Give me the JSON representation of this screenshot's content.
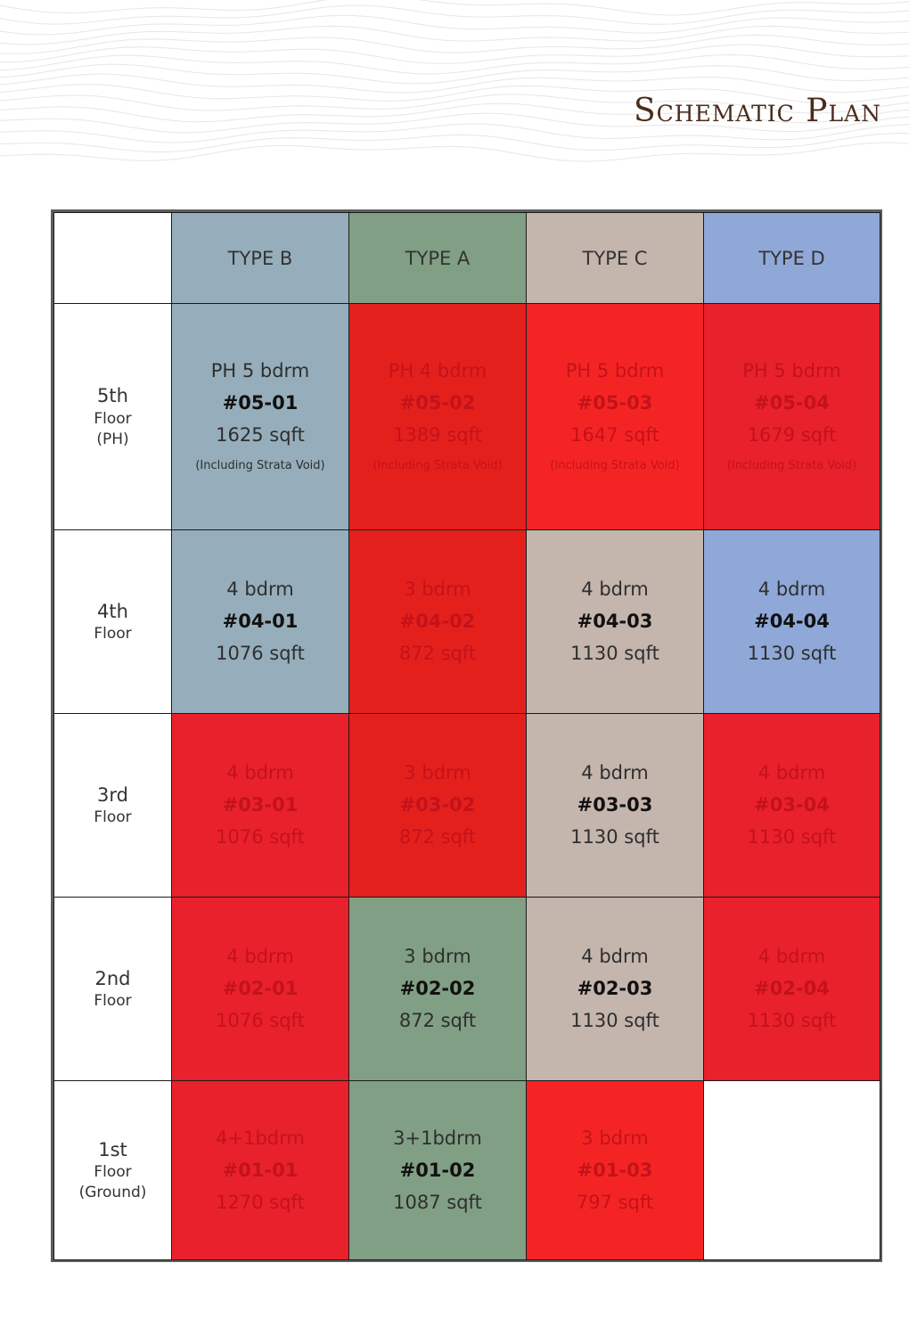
{
  "title": "Schematic Plan",
  "colors": {
    "type_b": "#96aebb",
    "type_a": "#819f84",
    "type_c": "#c4b5ad",
    "type_d": "#8fa8d8",
    "sold_1": "#e4201d",
    "sold_2": "#f52424",
    "sold_3": "#e8212c"
  },
  "columns": [
    {
      "label": "TYPE B",
      "color": "#96aebb"
    },
    {
      "label": "TYPE A",
      "color": "#819f84"
    },
    {
      "label": "TYPE C",
      "color": "#c4b5ad"
    },
    {
      "label": "TYPE D",
      "color": "#8fa8d8"
    }
  ],
  "floors": [
    {
      "label": [
        "5th",
        "Floor",
        "(PH)"
      ],
      "units": [
        {
          "bdrm": "PH 5 bdrm",
          "unit": "#05-01",
          "sqft": "1625 sqft",
          "note": "(Including Strata Void)",
          "color": "#96aebb",
          "sold": false
        },
        {
          "bdrm": "PH 4 bdrm",
          "unit": "#05-02",
          "sqft": "1389 sqft",
          "note": "(Including Strata Void)",
          "color": "#e4201d",
          "sold": true
        },
        {
          "bdrm": "PH 5 bdrm",
          "unit": "#05-03",
          "sqft": "1647 sqft",
          "note": "(Including Strata Void)",
          "color": "#f52424",
          "sold": true
        },
        {
          "bdrm": "PH 5 bdrm",
          "unit": "#05-04",
          "sqft": "1679 sqft",
          "note": "(Including Strata Void)",
          "color": "#e8212c",
          "sold": true
        }
      ]
    },
    {
      "label": [
        "4th",
        "Floor"
      ],
      "units": [
        {
          "bdrm": "4 bdrm",
          "unit": "#04-01",
          "sqft": "1076 sqft",
          "color": "#96aebb",
          "sold": false
        },
        {
          "bdrm": "3 bdrm",
          "unit": "#04-02",
          "sqft": "872 sqft",
          "color": "#e4201d",
          "sold": true
        },
        {
          "bdrm": "4 bdrm",
          "unit": "#04-03",
          "sqft": "1130 sqft",
          "color": "#c4b5ad",
          "sold": false
        },
        {
          "bdrm": "4 bdrm",
          "unit": "#04-04",
          "sqft": "1130 sqft",
          "color": "#8fa8d8",
          "sold": false
        }
      ]
    },
    {
      "label": [
        "3rd",
        "Floor"
      ],
      "units": [
        {
          "bdrm": "4 bdrm",
          "unit": "#03-01",
          "sqft": "1076 sqft",
          "color": "#e8212c",
          "sold": true
        },
        {
          "bdrm": "3 bdrm",
          "unit": "#03-02",
          "sqft": "872 sqft",
          "color": "#e4201d",
          "sold": true
        },
        {
          "bdrm": "4 bdrm",
          "unit": "#03-03",
          "sqft": "1130 sqft",
          "color": "#c4b5ad",
          "sold": false
        },
        {
          "bdrm": "4 bdrm",
          "unit": "#03-04",
          "sqft": "1130 sqft",
          "color": "#e8212c",
          "sold": true
        }
      ]
    },
    {
      "label": [
        "2nd",
        "Floor"
      ],
      "units": [
        {
          "bdrm": "4 bdrm",
          "unit": "#02-01",
          "sqft": "1076 sqft",
          "color": "#e8212c",
          "sold": true
        },
        {
          "bdrm": "3 bdrm",
          "unit": "#02-02",
          "sqft": "872 sqft",
          "color": "#819f84",
          "sold": false
        },
        {
          "bdrm": "4 bdrm",
          "unit": "#02-03",
          "sqft": "1130 sqft",
          "color": "#c4b5ad",
          "sold": false
        },
        {
          "bdrm": "4 bdrm",
          "unit": "#02-04",
          "sqft": "1130 sqft",
          "color": "#e8212c",
          "sold": true
        }
      ]
    },
    {
      "label": [
        "1st",
        "Floor",
        "(Ground)"
      ],
      "units": [
        {
          "bdrm": "4+1bdrm",
          "unit": "#01-01",
          "sqft": "1270 sqft",
          "color": "#e8212c",
          "sold": true
        },
        {
          "bdrm": "3+1bdrm",
          "unit": "#01-02",
          "sqft": "1087 sqft",
          "color": "#819f84",
          "sold": false
        },
        {
          "bdrm": "3 bdrm",
          "unit": "#01-03",
          "sqft": "797 sqft",
          "color": "#f52424",
          "sold": true
        },
        null
      ]
    }
  ]
}
